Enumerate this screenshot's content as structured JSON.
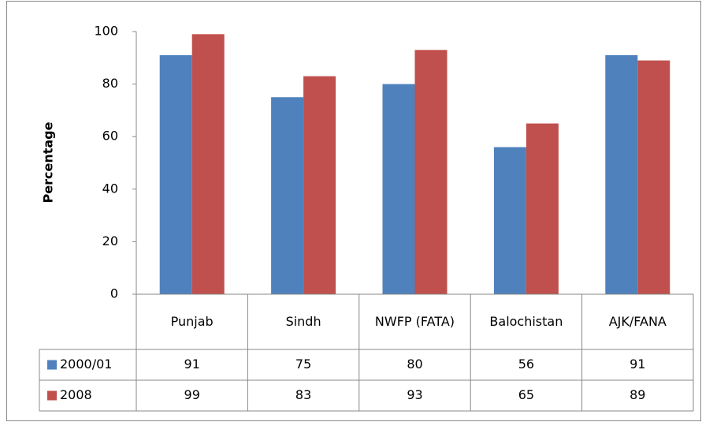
{
  "chart_data": {
    "type": "bar",
    "y_label": "Percentage",
    "categories": [
      "Punjab",
      "Sindh",
      "NWFP (FATA)",
      "Balochistan",
      "AJK/FANA"
    ],
    "series": [
      {
        "name": "2000/01",
        "color": "#4f81bd",
        "values": [
          91,
          75,
          80,
          56,
          91
        ]
      },
      {
        "name": "2008",
        "color": "#c0504d",
        "values": [
          99,
          83,
          93,
          65,
          89
        ]
      }
    ],
    "ylim": [
      0,
      100
    ],
    "yticks": [
      0,
      20,
      40,
      60,
      80,
      100
    ],
    "grid": false
  }
}
